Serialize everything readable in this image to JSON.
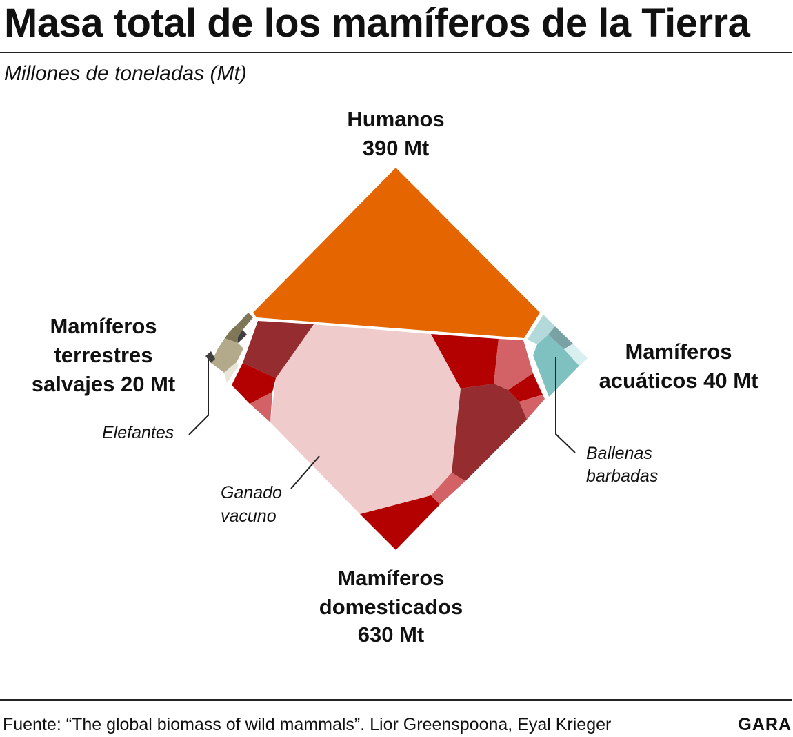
{
  "header": {
    "title": "Masa total de los mamíferos de la Tierra",
    "subtitle": "Millones de toneladas (Mt)"
  },
  "chart_data": {
    "type": "voronoi-treemap",
    "title": "Masa total de los mamíferos de la Tierra",
    "unit": "Millones de toneladas (Mt)",
    "groups": [
      {
        "name": "Humanos",
        "value": 390,
        "value_label": "390 Mt",
        "color": "#e56600"
      },
      {
        "name": "Mamíferos domesticados",
        "value": 630,
        "value_label": "630 Mt",
        "color": "#efcbcc"
      },
      {
        "name": "Mamíferos terrestres salvajes",
        "value": 20,
        "value_label": "20 Mt",
        "color": "#b2aa8a"
      },
      {
        "name": "Mamíferos acuáticos",
        "value": 40,
        "value_label": "40 Mt",
        "color": "#7fc0c0"
      }
    ],
    "annotations": [
      "Ganado vacuno",
      "Elefantes",
      "Ballenas barbadas"
    ]
  },
  "labels": {
    "humanos": {
      "line1": "Humanos",
      "line2": "390 Mt"
    },
    "domesticados": {
      "line1": "Mamíferos",
      "line2": "domesticados",
      "line3": "630 Mt"
    },
    "terrestres": {
      "line1": "Mamíferos",
      "line2": "terrestres",
      "line3": "salvajes 20 Mt"
    },
    "acuaticos": {
      "line1": "Mamíferos",
      "line2": "acuáticos 40 Mt"
    },
    "elefantes": "Elefantes",
    "ganado": {
      "line1": "Ganado",
      "line2": "vacuno"
    },
    "ballenas": {
      "line1": "Ballenas",
      "line2": "barbadas"
    }
  },
  "colors": {
    "humanos": "#e56600",
    "ganado": "#efcbcc",
    "dark_red": "#b30000",
    "maroon": "#942c30",
    "salmon": "#d36266",
    "terrestres": "#b2aa8a",
    "terrestres_dark": "#7e7656",
    "terrestres_light": "#e9e5d8",
    "terrestres_black": "#3f3f3f",
    "acuaticos": "#7fc0c0",
    "acuaticos_light": "#b3d9da",
    "acuaticos_mid": "#7aa2a4",
    "acuaticos_pale": "#d9eeee"
  },
  "footer": {
    "source": "Fuente: “The global biomass of wild mammals”. Lior Greenspoona, Eyal Krieger",
    "brand": "GARA"
  }
}
